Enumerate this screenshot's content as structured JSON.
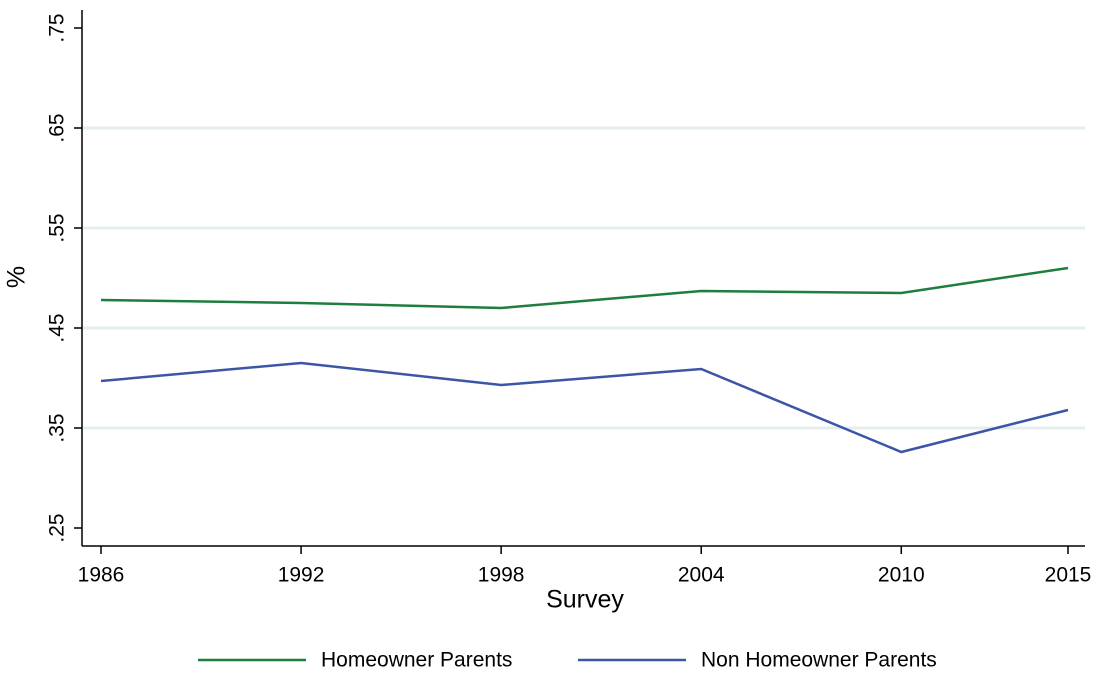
{
  "chart_data": {
    "type": "line",
    "x": [
      1986,
      1992,
      1998,
      2004,
      2010,
      2015
    ],
    "series": [
      {
        "name": "Homeowner Parents",
        "color": "#1f7d3f",
        "values": [
          0.478,
          0.475,
          0.47,
          0.487,
          0.485,
          0.51
        ]
      },
      {
        "name": "Non Homeowner Parents",
        "color": "#3d55a6",
        "values": [
          0.397,
          0.415,
          0.393,
          0.409,
          0.326,
          0.368
        ]
      }
    ],
    "xlim": [
      1986,
      2015
    ],
    "xticks": [
      1986,
      1992,
      1998,
      2004,
      2010,
      2015
    ],
    "ylim": [
      0.232,
      0.768
    ],
    "yticks": [
      {
        "value": 0.25,
        "label": ".25"
      },
      {
        "value": 0.35,
        "label": ".35"
      },
      {
        "value": 0.45,
        "label": ".45"
      },
      {
        "value": 0.55,
        "label": ".55"
      },
      {
        "value": 0.65,
        "label": ".65"
      },
      {
        "value": 0.75,
        "label": ".75"
      }
    ],
    "xlabel": "Survey",
    "ylabel": "%",
    "grid": true,
    "legend": "bottom"
  }
}
